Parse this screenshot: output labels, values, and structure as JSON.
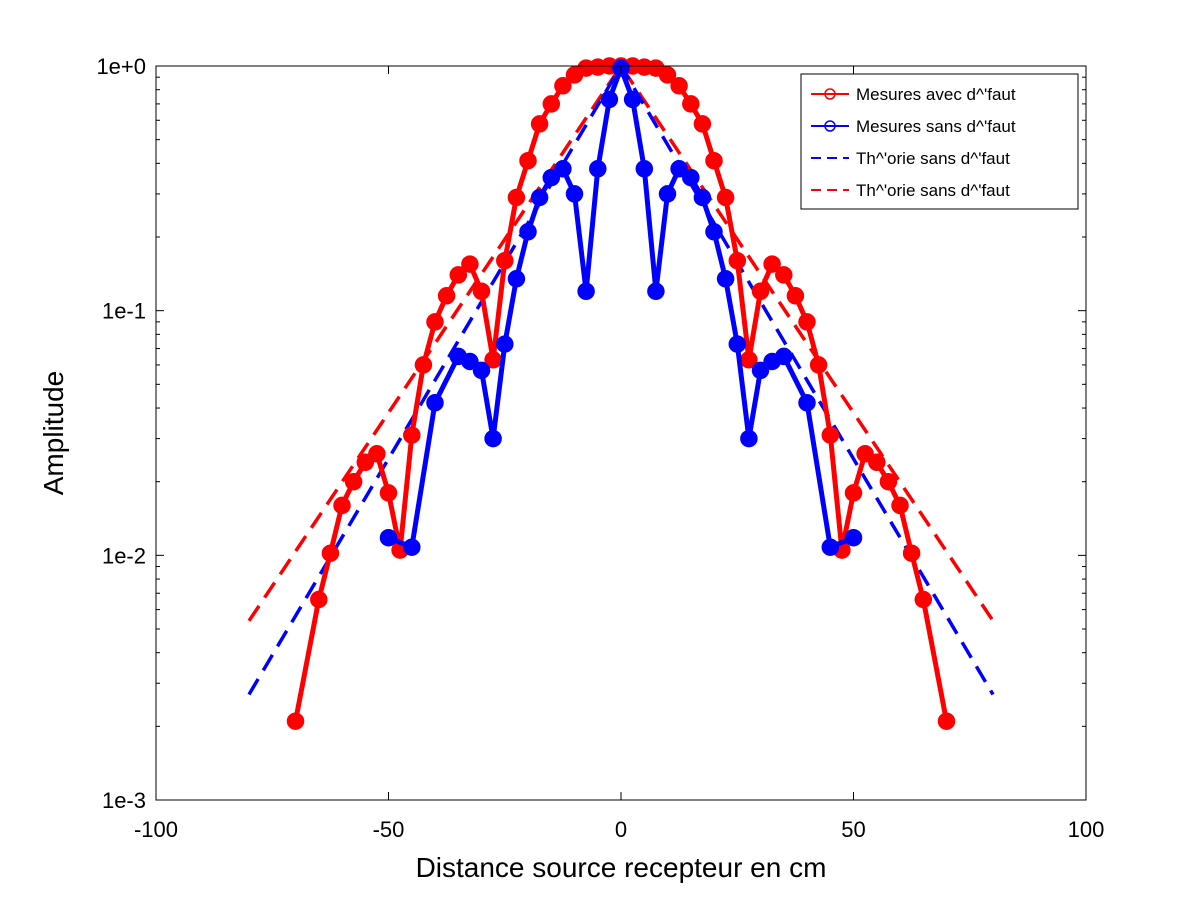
{
  "chart_data": {
    "type": "line",
    "title": "",
    "xlabel": "Distance source recepteur en cm",
    "ylabel": "Amplitude",
    "xlim": [
      -100,
      100
    ],
    "ylim": [
      0.001,
      1
    ],
    "yscale": "log",
    "x_ticks": [
      -100,
      -50,
      0,
      50,
      100
    ],
    "x_tick_labels": [
      "-100",
      "-50",
      "0",
      "50",
      "100"
    ],
    "y_ticks": [
      0.001,
      0.01,
      0.1,
      1
    ],
    "y_tick_labels": [
      "1e-3",
      "1e-2",
      "1e-1",
      "1e+0"
    ],
    "grid": false,
    "legend_position": "top-right",
    "series": [
      {
        "name": "Mesures avec d^'faut",
        "color": "#ff0000",
        "style": "solid-markers",
        "x": [
          -70,
          -65,
          -62.5,
          -60,
          -57.5,
          -55,
          -52.5,
          -50,
          -47.5,
          -45,
          -42.5,
          -40,
          -37.5,
          -35,
          -32.5,
          -30,
          -27.5,
          -25,
          -22.5,
          -20,
          -17.5,
          -15,
          -12.5,
          -10,
          -7.5,
          -5,
          -2.5,
          0,
          2.5,
          5,
          7.5,
          10,
          12.5,
          15,
          17.5,
          20,
          22.5,
          25,
          27.5,
          30,
          32.5,
          35,
          37.5,
          40,
          42.5,
          45,
          47.5,
          50,
          52.5,
          55,
          57.5,
          60,
          62.5,
          65,
          70
        ],
        "y": [
          0.0021,
          0.0066,
          0.0102,
          0.016,
          0.02,
          0.024,
          0.026,
          0.018,
          0.0105,
          0.031,
          0.06,
          0.09,
          0.115,
          0.14,
          0.155,
          0.12,
          0.063,
          0.16,
          0.29,
          0.41,
          0.58,
          0.7,
          0.83,
          0.92,
          0.98,
          0.99,
          1.0,
          1.0,
          1.0,
          0.99,
          0.98,
          0.92,
          0.83,
          0.7,
          0.58,
          0.41,
          0.29,
          0.16,
          0.063,
          0.12,
          0.155,
          0.14,
          0.115,
          0.09,
          0.06,
          0.031,
          0.0105,
          0.018,
          0.026,
          0.024,
          0.02,
          0.016,
          0.0102,
          0.0066,
          0.0021
        ]
      },
      {
        "name": "Mesures sans d^'faut",
        "color": "#0000ff",
        "style": "solid-markers",
        "x": [
          -50,
          -45,
          -40,
          -35,
          -32.5,
          -30,
          -27.5,
          -25,
          -22.5,
          -20,
          -17.5,
          -15,
          -12.5,
          -10,
          -7.5,
          -5,
          -2.5,
          0,
          2.5,
          5,
          7.5,
          10,
          12.5,
          15,
          17.5,
          20,
          22.5,
          25,
          27.5,
          30,
          32.5,
          35,
          40,
          45,
          50
        ],
        "y": [
          0.0118,
          0.0108,
          0.042,
          0.065,
          0.062,
          0.057,
          0.03,
          0.073,
          0.135,
          0.21,
          0.29,
          0.35,
          0.38,
          0.3,
          0.12,
          0.38,
          0.73,
          0.98,
          0.73,
          0.38,
          0.12,
          0.3,
          0.38,
          0.35,
          0.29,
          0.21,
          0.135,
          0.073,
          0.03,
          0.057,
          0.062,
          0.065,
          0.042,
          0.0108,
          0.0118
        ]
      },
      {
        "name": "Th^'orie sans d^'faut",
        "color": "#0000ff",
        "style": "dashed",
        "x": [
          -80,
          0,
          80
        ],
        "y": [
          0.0027,
          1.0,
          0.0027
        ]
      },
      {
        "name": "Th^'orie sans d^'faut",
        "color": "#ff0000",
        "style": "dashed",
        "x": [
          -80,
          0,
          80
        ],
        "y": [
          0.0054,
          1.0,
          0.0054
        ]
      }
    ]
  }
}
